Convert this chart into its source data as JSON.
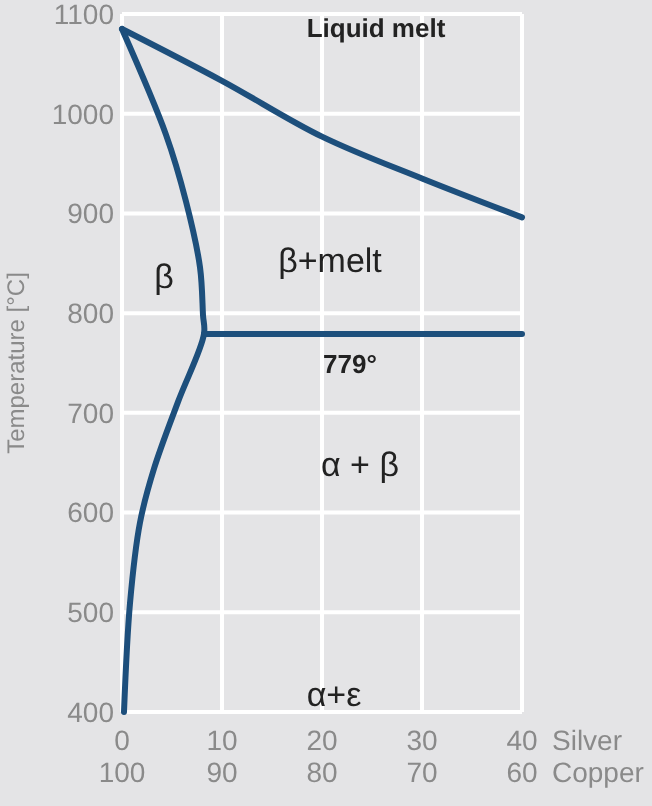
{
  "chart_data": {
    "type": "line",
    "ylabel": "Temperature [°C]",
    "xlabel": "Silver",
    "x2label": "Copper",
    "xlim": [
      0,
      40
    ],
    "xticks": [
      0,
      10,
      20,
      30,
      40
    ],
    "x2lim": [
      100,
      60
    ],
    "x2ticks": [
      100,
      90,
      80,
      70,
      60
    ],
    "ylim": [
      400,
      1100
    ],
    "yticks": [
      400,
      500,
      600,
      700,
      800,
      900,
      1000,
      1100
    ],
    "grid": true,
    "marker": "none",
    "line_style": "solid",
    "series": [
      {
        "color": "#1d4f7c",
        "x": [
          0,
          10,
          20,
          30,
          40
        ],
        "values": [
          1085,
          1033,
          977,
          935,
          896
        ]
      },
      {
        "color": "#1d4f7c",
        "x": [
          0,
          4.4,
          6.4,
          7.8,
          8.1,
          8.2,
          5.6,
          3.2,
          1.8,
          0.8,
          0.2
        ],
        "values": [
          1085,
          979,
          912,
          846,
          798,
          779,
          711,
          644,
          590,
          509,
          400
        ]
      },
      {
        "color": "#1d4f7c",
        "x": [
          8.2,
          40
        ],
        "values": [
          779,
          779
        ]
      }
    ],
    "annotations": [
      "Liquid melt",
      "β",
      "β+melt",
      "779°",
      "α + β",
      "α+ε"
    ]
  }
}
